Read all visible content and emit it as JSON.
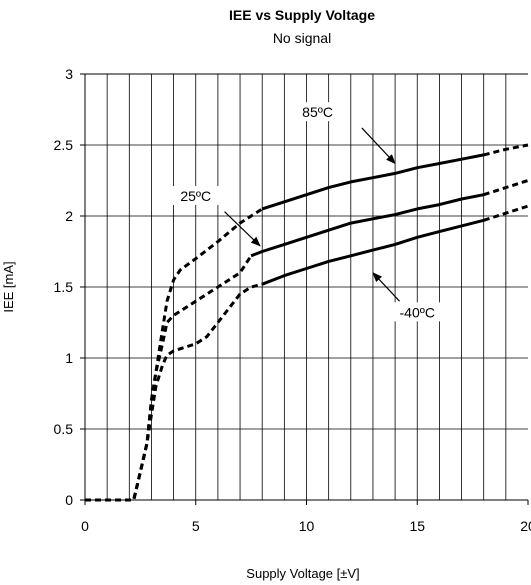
{
  "chart_data": {
    "type": "line",
    "title": "IEE vs Supply Voltage",
    "subtitle": "No signal",
    "xlabel": "Supply Voltage [±V]",
    "ylabel": "IEE [mA]",
    "xlim": [
      0,
      20
    ],
    "ylim": [
      0,
      3
    ],
    "xticks": [
      0,
      5,
      10,
      15,
      20
    ],
    "xtick_labels": [
      "0",
      "5",
      "10",
      "15",
      "20"
    ],
    "yticks": [
      0,
      0.5,
      1,
      1.5,
      2,
      2.5,
      3
    ],
    "ytick_labels": [
      "0",
      "0.5",
      "1",
      "1.5",
      "2",
      "2.5",
      "3"
    ],
    "grid": true,
    "series": [
      {
        "name": "85ºC",
        "color": "#000000",
        "style": "dashed-then-solid",
        "solid_range": [
          8,
          18
        ],
        "x": [
          0,
          2.2,
          2.5,
          2.8,
          3.0,
          3.2,
          3.5,
          3.7,
          4.0,
          4.3,
          5.0,
          6.0,
          7.0,
          8.0,
          9.0,
          10.0,
          11.0,
          12.0,
          13.0,
          14.0,
          15.0,
          16.0,
          17.0,
          18.0,
          19.0,
          20.0
        ],
        "y": [
          0,
          0,
          0.2,
          0.4,
          0.7,
          0.9,
          1.2,
          1.4,
          1.55,
          1.62,
          1.7,
          1.82,
          1.95,
          2.05,
          2.1,
          2.15,
          2.2,
          2.24,
          2.27,
          2.3,
          2.34,
          2.37,
          2.4,
          2.43,
          2.47,
          2.5
        ]
      },
      {
        "name": "25ºC",
        "color": "#000000",
        "style": "dashed-then-solid",
        "solid_range": [
          7.5,
          18
        ],
        "x": [
          0,
          2.2,
          2.5,
          2.8,
          3.0,
          3.2,
          3.5,
          3.7,
          4.0,
          4.5,
          5.0,
          6.0,
          7.0,
          7.5,
          8.0,
          9.0,
          10.0,
          11.0,
          12.0,
          13.0,
          14.0,
          15.0,
          16.0,
          17.0,
          18.0,
          19.0,
          20.0
        ],
        "y": [
          0,
          0,
          0.2,
          0.4,
          0.7,
          0.9,
          1.1,
          1.25,
          1.3,
          1.35,
          1.4,
          1.5,
          1.6,
          1.72,
          1.75,
          1.8,
          1.85,
          1.9,
          1.95,
          1.98,
          2.01,
          2.05,
          2.08,
          2.12,
          2.15,
          2.2,
          2.25
        ]
      },
      {
        "name": "-40ºC",
        "color": "#000000",
        "style": "dashed-then-solid",
        "solid_range": [
          8,
          18
        ],
        "x": [
          0,
          2.2,
          2.5,
          2.8,
          3.0,
          3.2,
          3.5,
          3.7,
          4.0,
          5.0,
          5.5,
          6.0,
          7.0,
          7.5,
          8.0,
          9.0,
          10.0,
          11.0,
          12.0,
          13.0,
          14.0,
          15.0,
          16.0,
          17.0,
          18.0,
          19.0,
          20.0
        ],
        "y": [
          0,
          0,
          0.2,
          0.4,
          0.6,
          0.8,
          0.95,
          1.02,
          1.05,
          1.1,
          1.15,
          1.25,
          1.45,
          1.5,
          1.52,
          1.58,
          1.63,
          1.68,
          1.72,
          1.76,
          1.8,
          1.85,
          1.89,
          1.93,
          1.97,
          2.02,
          2.07
        ]
      }
    ],
    "annotations": [
      {
        "text": "85ºC",
        "label_x": 10.5,
        "label_y": 2.71,
        "arrow_from": [
          12.5,
          2.62
        ],
        "arrow_to": [
          14.0,
          2.37
        ]
      },
      {
        "text": "25ºC",
        "label_x": 5.0,
        "label_y": 2.12,
        "arrow_from": [
          6.3,
          2.03
        ],
        "arrow_to": [
          7.9,
          1.79
        ]
      },
      {
        "text": "-40ºC",
        "label_x": 15.0,
        "label_y": 1.3,
        "arrow_from": [
          14.2,
          1.4
        ],
        "arrow_to": [
          13.0,
          1.6
        ]
      }
    ]
  }
}
